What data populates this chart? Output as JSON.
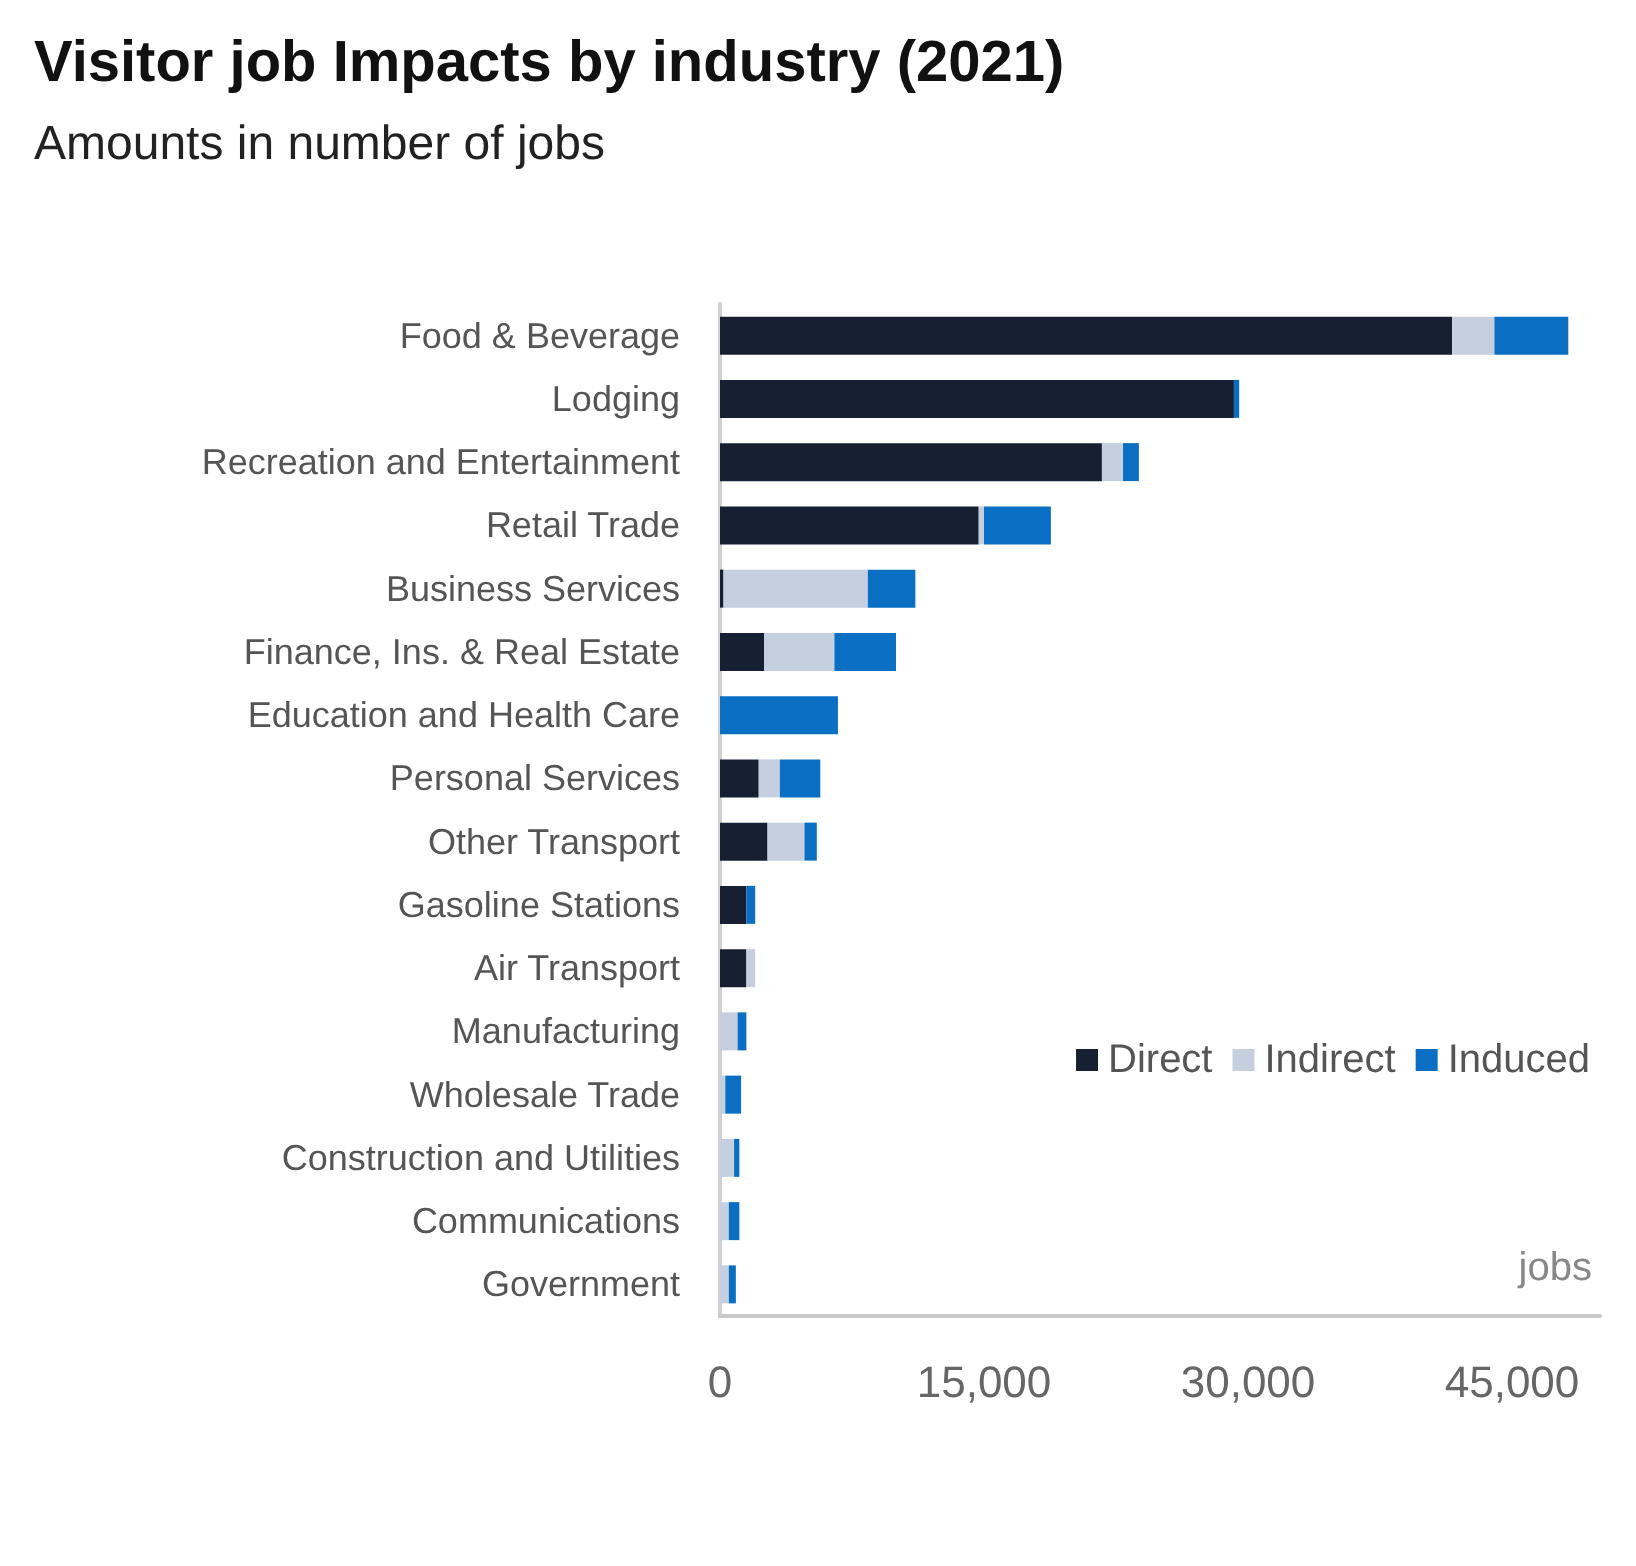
{
  "chart_data": {
    "type": "bar",
    "orientation": "horizontal",
    "stacked": true,
    "title": "Visitor job Impacts by industry (2021)",
    "subtitle": "Amounts in number of jobs",
    "xlabel": "jobs",
    "categories": [
      "Food & Beverage",
      "Lodging",
      "Recreation and Entertainment",
      "Retail Trade",
      "Business Services",
      "Finance, Ins. & Real Estate",
      "Education and Health Care",
      "Personal Services",
      "Other Transport",
      "Gasoline Stations",
      "Air Transport",
      "Manufacturing",
      "Wholesale Trade",
      "Construction and Utilities",
      "Communications",
      "Government"
    ],
    "series": [
      {
        "name": "Direct",
        "color": "#172033",
        "values": [
          41600,
          29200,
          21700,
          14700,
          200,
          2500,
          0,
          2200,
          2700,
          1500,
          1500,
          0,
          0,
          0,
          0,
          0
        ]
      },
      {
        "name": "Indirect",
        "color": "#c5cfe0",
        "values": [
          2400,
          0,
          1200,
          300,
          8200,
          4000,
          0,
          1200,
          2100,
          0,
          500,
          1000,
          300,
          800,
          500,
          500
        ]
      },
      {
        "name": "Induced",
        "color": "#0a6fc2",
        "values": [
          4200,
          300,
          900,
          3800,
          2700,
          3500,
          6700,
          2300,
          700,
          500,
          0,
          500,
          900,
          300,
          600,
          400
        ]
      }
    ],
    "xlim": [
      0,
      50000
    ],
    "xticks": [
      0,
      {
        "value": 15000,
        "label": "15,000"
      },
      {
        "value": 30000,
        "label": "30,000"
      },
      {
        "value": 45000,
        "label": "45,000"
      }
    ],
    "legend": "right"
  }
}
